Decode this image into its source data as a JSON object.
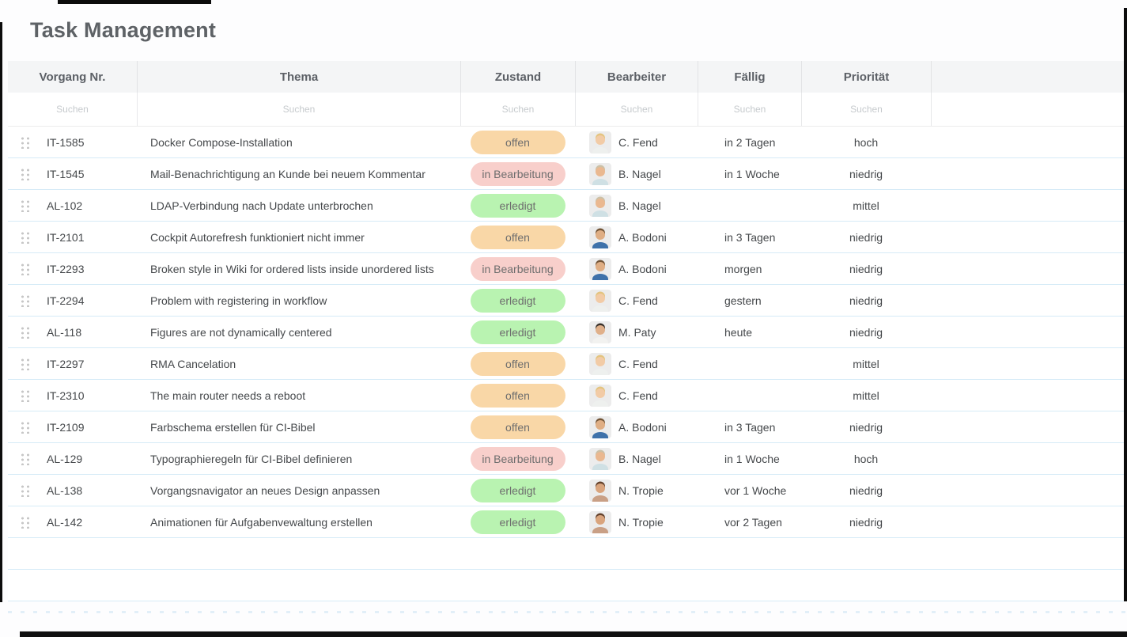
{
  "page": {
    "title": "Task Management"
  },
  "table": {
    "columns": [
      {
        "key": "id",
        "label": "Vorgang Nr."
      },
      {
        "key": "thema",
        "label": "Thema"
      },
      {
        "key": "zustand",
        "label": "Zustand"
      },
      {
        "key": "bearbeiter",
        "label": "Bearbeiter"
      },
      {
        "key": "faellig",
        "label": "Fällig"
      },
      {
        "key": "prioritaet",
        "label": "Priorität"
      }
    ],
    "search_placeholder": "Suchen",
    "statuses": {
      "offen": {
        "label": "offen",
        "bg": "#f9d7a7",
        "color": "#6e6e6e"
      },
      "in_bearbeitung": {
        "label": "in Bearbeitung",
        "bg": "#f8cfcb",
        "color": "#6e6e6e"
      },
      "erledigt": {
        "label": "erledigt",
        "bg": "#b9f3b1",
        "color": "#6e6e6e"
      }
    },
    "rows": [
      {
        "id": "IT-1585",
        "thema": "Docker Compose-Installation",
        "status": "offen",
        "bearbeiter": "C. Fend",
        "avatar": "c-fend",
        "faellig": "in 2 Tagen",
        "prioritaet": "hoch"
      },
      {
        "id": "IT-1545",
        "thema": "Mail-Benachrichtigung an Kunde bei neuem Kommentar",
        "status": "in_bearbeitung",
        "bearbeiter": "B. Nagel",
        "avatar": "b-nagel",
        "faellig": "in 1  Woche",
        "prioritaet": "niedrig"
      },
      {
        "id": "AL-102",
        "thema": "LDAP-Verbindung nach Update unterbrochen",
        "status": "erledigt",
        "bearbeiter": "B. Nagel",
        "avatar": "b-nagel",
        "faellig": "",
        "prioritaet": "mittel"
      },
      {
        "id": "IT-2101",
        "thema": "Cockpit Autorefresh funktioniert nicht immer",
        "status": "offen",
        "bearbeiter": "A. Bodoni",
        "avatar": "a-bodoni",
        "faellig": "in 3 Tagen",
        "prioritaet": "niedrig"
      },
      {
        "id": "IT-2293",
        "thema": "Broken style in Wiki for ordered lists inside unordered lists",
        "status": "in_bearbeitung",
        "bearbeiter": "A. Bodoni",
        "avatar": "a-bodoni",
        "faellig": "morgen",
        "prioritaet": "niedrig"
      },
      {
        "id": "IT-2294",
        "thema": "Problem with registering in workflow",
        "status": "erledigt",
        "bearbeiter": "C. Fend",
        "avatar": "c-fend",
        "faellig": "gestern",
        "prioritaet": "niedrig"
      },
      {
        "id": "AL-118",
        "thema": "Figures are not dynamically centered",
        "status": "erledigt",
        "bearbeiter": "M. Paty",
        "avatar": "m-paty",
        "faellig": "heute",
        "prioritaet": "niedrig"
      },
      {
        "id": "IT-2297",
        "thema": "RMA Cancelation",
        "status": "offen",
        "bearbeiter": "C. Fend",
        "avatar": "c-fend",
        "faellig": "",
        "prioritaet": "mittel"
      },
      {
        "id": "IT-2310",
        "thema": "The main router needs a reboot",
        "status": "offen",
        "bearbeiter": "C. Fend",
        "avatar": "c-fend",
        "faellig": "",
        "prioritaet": "mittel"
      },
      {
        "id": "IT-2109",
        "thema": "Farbschema erstellen für CI-Bibel",
        "status": "offen",
        "bearbeiter": "A. Bodoni",
        "avatar": "a-bodoni",
        "faellig": "in 3 Tagen",
        "prioritaet": "niedrig"
      },
      {
        "id": "AL-129",
        "thema": "Typographieregeln für CI-Bibel definieren",
        "status": "in_bearbeitung",
        "bearbeiter": "B. Nagel",
        "avatar": "b-nagel",
        "faellig": "in 1  Woche",
        "prioritaet": "hoch"
      },
      {
        "id": "AL-138",
        "thema": "Vorgangsnavigator an neues Design anpassen",
        "status": "erledigt",
        "bearbeiter": "N. Tropie",
        "avatar": "n-tropie",
        "faellig": "vor  1  Woche",
        "prioritaet": "niedrig"
      },
      {
        "id": "AL-142",
        "thema": "Animationen für Aufgabenvewaltung erstellen",
        "status": "erledigt",
        "bearbeiter": "N. Tropie",
        "avatar": "n-tropie",
        "faellig": "vor 2 Tagen",
        "prioritaet": "niedrig"
      }
    ]
  }
}
